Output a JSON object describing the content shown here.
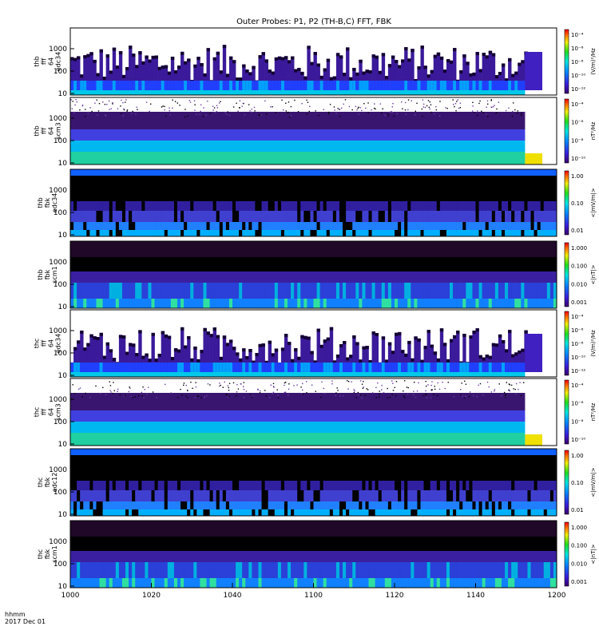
{
  "chart_data": {
    "type": "heatmap",
    "title": "Outer Probes: P1, P2 (TH-B,C) FFT, FBK",
    "x_tick_labels": [
      "1000",
      "1020",
      "1040",
      "1100",
      "1120",
      "1140",
      "1200"
    ],
    "x_range": [
      0,
      6
    ],
    "time_label_line1": "hhmm",
    "time_label_line2": "2017 Dec 01",
    "panels": [
      {
        "id": "thb-fft-e34",
        "label_lines": [
          "thb",
          "fff",
          "64",
          "edc34"
        ],
        "kind": "fft_e",
        "y_ticks": [
          "1000",
          "100",
          "10"
        ],
        "colorbar_ticks": [
          "10⁻⁴",
          "10⁻⁶",
          "10⁻⁸",
          "10⁻¹⁰",
          "10⁻¹²"
        ],
        "colorbar_unit": "(V/m)²/Hz"
      },
      {
        "id": "thb-fft-scm3",
        "label_lines": [
          "thb",
          "fff",
          "64",
          "scm3"
        ],
        "kind": "fft_b",
        "y_ticks": [
          "1000",
          "100",
          "10"
        ],
        "colorbar_ticks": [
          "10⁻⁴",
          "10⁻⁶",
          "10⁻⁸",
          "10⁻¹⁰"
        ],
        "colorbar_unit": "nT²/Hz"
      },
      {
        "id": "thb-fbk-e34",
        "label_lines": [
          "thb",
          "fbk",
          "edc34"
        ],
        "kind": "fbk_e",
        "y_ticks": [
          "1000",
          "100",
          "10"
        ],
        "colorbar_ticks": [
          "1.00",
          "0.10",
          "0.01"
        ],
        "colorbar_unit": "<|mV/m|>"
      },
      {
        "id": "thb-fbk-scm1",
        "label_lines": [
          "thb",
          "fbk",
          "scm1"
        ],
        "kind": "fbk_b",
        "y_ticks": [
          "1000",
          "100",
          "10"
        ],
        "colorbar_ticks": [
          "1.000",
          "0.100",
          "0.010",
          "0.001"
        ],
        "colorbar_unit": "<|nT|>"
      },
      {
        "id": "thc-fft-e34",
        "label_lines": [
          "thc",
          "fff",
          "64",
          "edc34"
        ],
        "kind": "fft_e",
        "y_ticks": [
          "1000",
          "100",
          "10"
        ],
        "colorbar_ticks": [
          "10⁻⁴",
          "10⁻⁶",
          "10⁻⁸",
          "10⁻¹⁰",
          "10⁻¹²"
        ],
        "colorbar_unit": "(V/m)²/Hz"
      },
      {
        "id": "thc-fft-scm3",
        "label_lines": [
          "thc",
          "fff",
          "64",
          "scm3"
        ],
        "kind": "fft_b",
        "y_ticks": [
          "1000",
          "100",
          "10"
        ],
        "colorbar_ticks": [
          "10⁻⁴",
          "10⁻⁶",
          "10⁻⁸",
          "10⁻¹⁰"
        ],
        "colorbar_unit": "nT²/Hz"
      },
      {
        "id": "thc-fbk-e12",
        "label_lines": [
          "thc",
          "fbk",
          "edc12"
        ],
        "kind": "fbk_e",
        "y_ticks": [
          "1000",
          "100",
          "10"
        ],
        "colorbar_ticks": [
          "1.00",
          "0.10",
          "0.01"
        ],
        "colorbar_unit": "<|mV/m|>"
      },
      {
        "id": "thc-fbk-scm1",
        "label_lines": [
          "thc",
          "fbk",
          "scm1"
        ],
        "kind": "fbk_b",
        "y_ticks": [
          "1000",
          "100",
          "10"
        ],
        "colorbar_ticks": [
          "1.000",
          "0.100",
          "0.010",
          "0.001"
        ],
        "colorbar_unit": "<|nT|>"
      }
    ]
  }
}
